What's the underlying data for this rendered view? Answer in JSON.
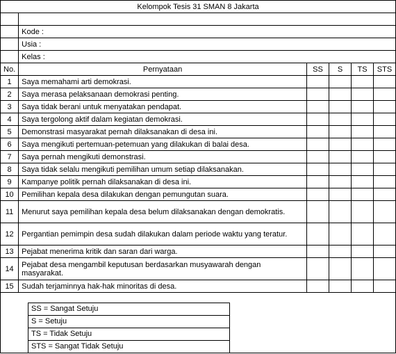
{
  "title": "Kelompok Tesis 31 SMAN 8 Jakarta",
  "meta": {
    "kode": "Kode :",
    "usia": "Usia :",
    "kelas": "Kelas :"
  },
  "headers": {
    "no": "No.",
    "statement": "Pernyataan",
    "ss": "SS",
    "s": "S",
    "ts": "TS",
    "sts": "STS"
  },
  "rows": [
    {
      "no": "1",
      "text": "Saya memahami arti demokrasi."
    },
    {
      "no": "2",
      "text": "Saya merasa pelaksanaan demokrasi penting."
    },
    {
      "no": "3",
      "text": "Saya tidak berani untuk menyatakan pendapat."
    },
    {
      "no": "4",
      "text": "Saya tergolong aktif dalam kegiatan demokrasi."
    },
    {
      "no": "5",
      "text": "Demonstrasi masyarakat pernah dilaksanakan di desa ini."
    },
    {
      "no": "6",
      "text": "Saya mengikuti pertemuan-petemuan yang dilakukan di balai desa."
    },
    {
      "no": "7",
      "text": "Saya pernah mengikuti demonstrasi."
    },
    {
      "no": "8",
      "text": "Saya tidak selalu mengikuti pemilihan umum setiap dilaksanakan."
    },
    {
      "no": "9",
      "text": "Kampanye politik pernah dilaksanakan di desa ini."
    },
    {
      "no": "10",
      "text": "Pemilihan kepala desa dilakukan dengan pemungutan suara."
    },
    {
      "no": "11",
      "text": "Menurut saya pemilihan kepala desa belum dilaksanakan dengan demokratis."
    },
    {
      "no": "12",
      "text": "Pergantian pemimpin desa sudah dilakukan dalam periode waktu yang teratur."
    },
    {
      "no": "13",
      "text": "Pejabat menerima kritik dan saran dari warga."
    },
    {
      "no": "14",
      "text": "Pejabat desa mengambil keputusan berdasarkan musyawarah dengan masyarakat."
    },
    {
      "no": "15",
      "text": "Sudah terjaminnya hak-hak minoritas di desa."
    }
  ],
  "legend": {
    "ss": "SS = Sangat Setuju",
    "s": "S = Setuju",
    "ts": "TS = Tidak Setuju",
    "sts": "STS = Sangat Tidak Setuju"
  }
}
